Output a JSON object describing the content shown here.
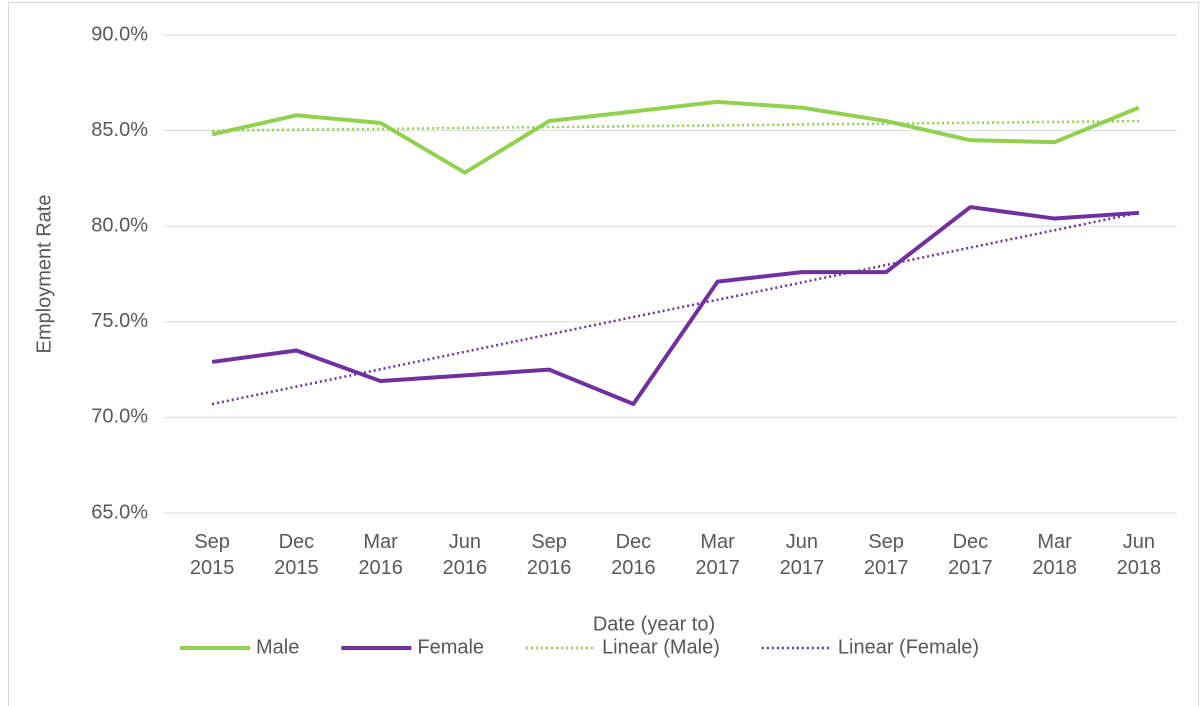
{
  "chart_data": {
    "type": "line",
    "y_label": "Employment Rate",
    "x_label": "Date (year to)",
    "categories": [
      "Sep 2015",
      "Dec 2015",
      "Mar 2016",
      "Jun 2016",
      "Sep 2016",
      "Dec 2016",
      "Mar 2017",
      "Jun 2017",
      "Sep 2017",
      "Dec 2017",
      "Mar 2018",
      "Jun 2018"
    ],
    "series": [
      {
        "name": "Male",
        "color": "#92d050",
        "style": "solid",
        "values": [
          84.8,
          85.8,
          85.4,
          82.8,
          85.5,
          86.0,
          86.5,
          86.2,
          85.5,
          84.5,
          84.4,
          86.2
        ]
      },
      {
        "name": "Female",
        "color": "#7030a0",
        "style": "solid",
        "values": [
          72.9,
          73.5,
          71.9,
          72.2,
          72.5,
          70.7,
          77.1,
          77.6,
          77.6,
          81.0,
          80.4,
          80.7
        ]
      },
      {
        "name": "Linear (Male)",
        "color": "#92d050",
        "style": "dotted",
        "values": [
          85.0,
          85.05,
          85.09,
          85.14,
          85.18,
          85.23,
          85.27,
          85.32,
          85.36,
          85.41,
          85.45,
          85.5
        ]
      },
      {
        "name": "Linear (Female)",
        "color": "#7030a0",
        "style": "dotted",
        "values": [
          70.7,
          71.61,
          72.52,
          73.43,
          74.34,
          75.25,
          76.15,
          77.06,
          77.97,
          78.88,
          79.79,
          80.7
        ]
      }
    ],
    "ylim": [
      65,
      90
    ],
    "yticks": [
      {
        "value": 65,
        "label": "65.0%"
      },
      {
        "value": 70,
        "label": "70.0%"
      },
      {
        "value": 75,
        "label": "75.0%"
      },
      {
        "value": 80,
        "label": "80.0%"
      },
      {
        "value": 85,
        "label": "85.0%"
      },
      {
        "value": 90,
        "label": "90.0%"
      }
    ],
    "grid": true,
    "legend": "bottom"
  }
}
